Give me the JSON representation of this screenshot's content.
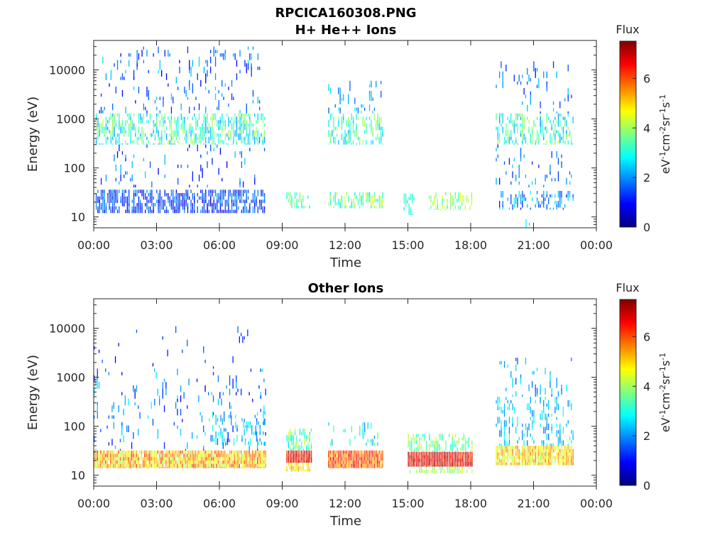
{
  "figure": {
    "title": "RPCICA160308.PNG"
  },
  "colorbar": {
    "title": "Flux",
    "unit_label": "eV",
    "unit_label_parts": [
      "eV",
      "-1",
      "cm",
      "-2",
      "sr",
      "-1",
      "s",
      "-1"
    ],
    "ticks": [
      "0",
      "2",
      "4",
      "6"
    ],
    "range": [
      0,
      7.5
    ],
    "colormap": "jet",
    "colors": [
      "#00007f",
      "#0000ff",
      "#007fff",
      "#00ffff",
      "#7fff7f",
      "#ffff00",
      "#ff7f00",
      "#ff0000",
      "#7f0000"
    ]
  },
  "chart_data": [
    {
      "type": "heatmap",
      "title": "H+ He++ Ions",
      "xlabel": "Time",
      "ylabel": "Energy (eV)",
      "x_ticks": [
        "00:00",
        "03:00",
        "06:00",
        "09:00",
        "12:00",
        "15:00",
        "18:00",
        "21:00",
        "00:00"
      ],
      "x_range_hours": [
        0,
        24
      ],
      "y_ticks": [
        "10",
        "100",
        "1000",
        "10000"
      ],
      "y_scale": "log",
      "ylim": [
        6,
        40000
      ],
      "grid": false,
      "blocks": [
        {
          "t": [
            0.1,
            8.2
          ],
          "e": [
            12,
            36
          ],
          "flux": [
            0.6,
            2.2
          ],
          "density": 0.55
        },
        {
          "t": [
            0.1,
            8.2
          ],
          "e": [
            300,
            1300
          ],
          "flux": [
            2.0,
            4.2
          ],
          "density": 0.38
        },
        {
          "t": [
            0.1,
            8.2
          ],
          "e": [
            1300,
            30000
          ],
          "flux": [
            0.8,
            2.6
          ],
          "density": 0.06
        },
        {
          "t": [
            0.1,
            8.2
          ],
          "e": [
            40,
            300
          ],
          "flux": [
            0.8,
            2.5
          ],
          "density": 0.05
        },
        {
          "t": [
            9.2,
            10.3
          ],
          "e": [
            15,
            32
          ],
          "flux": [
            2.6,
            4.0
          ],
          "density": 0.35
        },
        {
          "t": [
            11.2,
            13.8
          ],
          "e": [
            15,
            32
          ],
          "flux": [
            2.5,
            4.5
          ],
          "density": 0.45
        },
        {
          "t": [
            11.2,
            13.8
          ],
          "e": [
            300,
            1300
          ],
          "flux": [
            2.2,
            4.2
          ],
          "density": 0.3
        },
        {
          "t": [
            11.2,
            13.8
          ],
          "e": [
            1300,
            6000
          ],
          "flux": [
            1.5,
            2.8
          ],
          "density": 0.06
        },
        {
          "t": [
            14.8,
            15.3
          ],
          "e": [
            11,
            30
          ],
          "flux": [
            2.6,
            3.5
          ],
          "density": 0.3
        },
        {
          "t": [
            16.0,
            18.1
          ],
          "e": [
            14,
            32
          ],
          "flux": [
            2.8,
            4.8
          ],
          "density": 0.3
        },
        {
          "t": [
            19.2,
            22.9
          ],
          "e": [
            300,
            1300
          ],
          "flux": [
            2.0,
            4.2
          ],
          "density": 0.32
        },
        {
          "t": [
            19.2,
            22.9
          ],
          "e": [
            14,
            34
          ],
          "flux": [
            1.0,
            2.8
          ],
          "density": 0.25
        },
        {
          "t": [
            19.2,
            22.9
          ],
          "e": [
            40,
            300
          ],
          "flux": [
            1.0,
            2.5
          ],
          "density": 0.06
        },
        {
          "t": [
            19.2,
            22.9
          ],
          "e": [
            1300,
            15000
          ],
          "flux": [
            1.0,
            2.5
          ],
          "density": 0.05
        },
        {
          "t": [
            20.0,
            22.0
          ],
          "e": [
            6,
            9
          ],
          "flux": [
            2.5,
            3.0
          ],
          "density": 0.05
        }
      ]
    },
    {
      "type": "heatmap",
      "title": "Other Ions",
      "xlabel": "Time",
      "ylabel": "Energy (eV)",
      "x_ticks": [
        "00:00",
        "03:00",
        "06:00",
        "09:00",
        "12:00",
        "15:00",
        "18:00",
        "21:00",
        "00:00"
      ],
      "x_range_hours": [
        0,
        24
      ],
      "y_ticks": [
        "10",
        "100",
        "1000",
        "10000"
      ],
      "y_scale": "log",
      "ylim": [
        6,
        40000
      ],
      "grid": false,
      "blocks": [
        {
          "t": [
            0.0,
            8.2
          ],
          "e": [
            14,
            32
          ],
          "flux": [
            4.0,
            6.2
          ],
          "density": 0.9
        },
        {
          "t": [
            0.0,
            8.2
          ],
          "e": [
            32,
            1500
          ],
          "flux": [
            0.8,
            2.8
          ],
          "density": 0.05
        },
        {
          "t": [
            5.5,
            8.2
          ],
          "e": [
            40,
            200
          ],
          "flux": [
            1.5,
            3.2
          ],
          "density": 0.2
        },
        {
          "t": [
            0.0,
            8.2
          ],
          "e": [
            1500,
            11000
          ],
          "flux": [
            0.8,
            1.8
          ],
          "density": 0.02
        },
        {
          "t": [
            9.2,
            10.4
          ],
          "e": [
            18,
            32
          ],
          "flux": [
            6.0,
            7.3
          ],
          "density": 1.0
        },
        {
          "t": [
            9.2,
            10.4
          ],
          "e": [
            32,
            90
          ],
          "flux": [
            2.6,
            4.4
          ],
          "density": 0.5
        },
        {
          "t": [
            9.2,
            10.4
          ],
          "e": [
            12,
            18
          ],
          "flux": [
            4.4,
            5.5
          ],
          "density": 0.7
        },
        {
          "t": [
            11.2,
            13.8
          ],
          "e": [
            14,
            32
          ],
          "flux": [
            5.0,
            6.8
          ],
          "density": 1.0
        },
        {
          "t": [
            11.2,
            13.8
          ],
          "e": [
            40,
            120
          ],
          "flux": [
            2.0,
            3.5
          ],
          "density": 0.12
        },
        {
          "t": [
            15.0,
            18.1
          ],
          "e": [
            15,
            30
          ],
          "flux": [
            6.0,
            7.4
          ],
          "density": 1.0
        },
        {
          "t": [
            15.0,
            18.1
          ],
          "e": [
            30,
            70
          ],
          "flux": [
            2.8,
            4.5
          ],
          "density": 0.45
        },
        {
          "t": [
            15.0,
            18.1
          ],
          "e": [
            11,
            15
          ],
          "flux": [
            3.5,
            4.5
          ],
          "density": 0.5
        },
        {
          "t": [
            19.2,
            22.9
          ],
          "e": [
            16,
            40
          ],
          "flux": [
            4.0,
            5.8
          ],
          "density": 0.85
        },
        {
          "t": [
            19.2,
            22.9
          ],
          "e": [
            40,
            400
          ],
          "flux": [
            1.8,
            3.2
          ],
          "density": 0.18
        },
        {
          "t": [
            19.2,
            22.9
          ],
          "e": [
            400,
            2500
          ],
          "flux": [
            1.5,
            2.8
          ],
          "density": 0.06
        }
      ]
    }
  ]
}
